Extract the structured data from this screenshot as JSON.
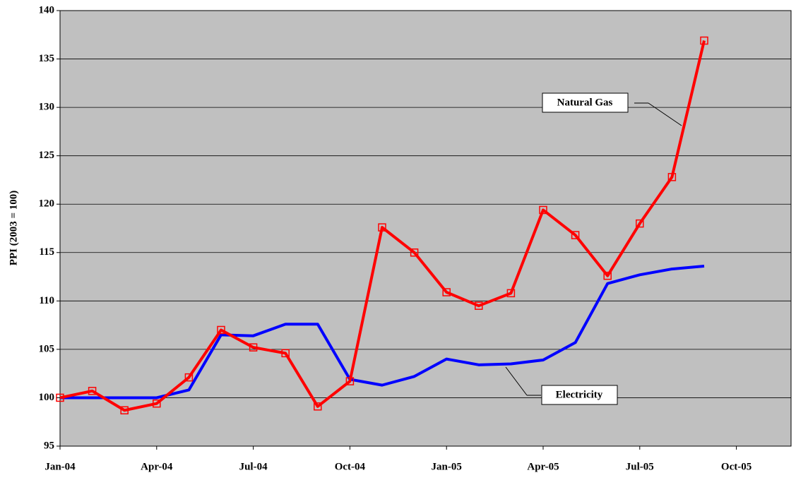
{
  "chart_data": {
    "type": "line",
    "y_label": "PPI (2003 = 100)",
    "categories": [
      "Jan-04",
      null,
      null,
      "Apr-04",
      null,
      null,
      "Jul-04",
      null,
      null,
      "Oct-04",
      null,
      null,
      "Jan-05",
      null,
      null,
      "Apr-05",
      null,
      null,
      "Jul-05",
      null,
      null,
      "Oct-05",
      null,
      null
    ],
    "series": [
      {
        "name": "Electricity",
        "color": "#0000ff",
        "markers": false,
        "values": [
          100,
          100,
          100,
          100,
          100.8,
          106.5,
          106.4,
          107.6,
          107.6,
          101.9,
          101.3,
          102.2,
          104.0,
          103.4,
          103.5,
          103.9,
          105.7,
          111.8,
          112.7,
          113.3,
          113.6,
          null,
          null,
          null
        ]
      },
      {
        "name": "Natural Gas",
        "color": "#ff0000",
        "markers": true,
        "values": [
          100,
          100.7,
          98.7,
          99.4,
          102.1,
          107.0,
          105.2,
          104.6,
          99.1,
          101.7,
          117.6,
          115.0,
          110.9,
          109.5,
          110.8,
          119.4,
          116.8,
          112.6,
          118.0,
          122.8,
          136.9,
          null,
          null,
          null
        ]
      }
    ],
    "ylim": [
      95,
      140
    ],
    "yticks": [
      95,
      100,
      105,
      110,
      115,
      120,
      125,
      130,
      135,
      140
    ],
    "grid": true
  }
}
